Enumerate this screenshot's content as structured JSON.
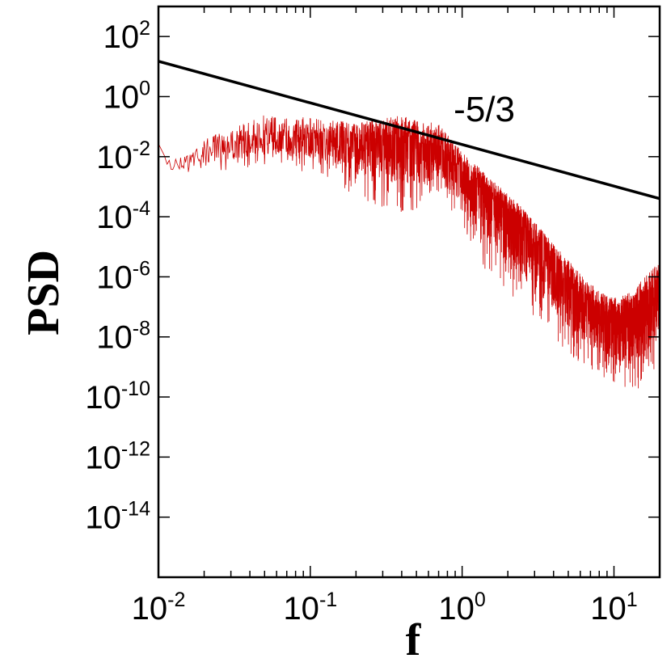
{
  "chart_data": {
    "type": "line",
    "title": "",
    "xlabel": "f",
    "ylabel": "PSD",
    "xscale": "log",
    "yscale": "log",
    "xlim": [
      0.01,
      20
    ],
    "ylim": [
      1e-16,
      1000
    ],
    "x_ticks": [
      {
        "value": 0.01,
        "base": "10",
        "exp": "-2"
      },
      {
        "value": 0.1,
        "base": "10",
        "exp": "-1"
      },
      {
        "value": 1,
        "base": "10",
        "exp": "0"
      },
      {
        "value": 10,
        "base": "10",
        "exp": "1"
      }
    ],
    "y_ticks": [
      {
        "value": 100,
        "base": "10",
        "exp": "2"
      },
      {
        "value": 1,
        "base": "10",
        "exp": "0"
      },
      {
        "value": 0.01,
        "base": "10",
        "exp": "-2"
      },
      {
        "value": 0.0001,
        "base": "10",
        "exp": "-4"
      },
      {
        "value": 1e-06,
        "base": "10",
        "exp": "-6"
      },
      {
        "value": 1e-08,
        "base": "10",
        "exp": "-8"
      },
      {
        "value": 1e-10,
        "base": "10",
        "exp": "-10"
      },
      {
        "value": 1e-12,
        "base": "10",
        "exp": "-12"
      },
      {
        "value": 1e-14,
        "base": "10",
        "exp": "-14"
      }
    ],
    "grid": false,
    "series": [
      {
        "color": "#cc0000",
        "style": "noisy spectrum",
        "envelope": {
          "x": [
            0.01,
            0.012,
            0.02,
            0.05,
            0.1,
            0.2,
            0.4,
            0.7,
            1.0,
            1.5,
            2.5,
            4,
            6,
            8,
            10,
            13,
            16,
            20
          ],
          "y_mean": [
            0.02,
            0.005,
            0.015,
            0.05,
            0.04,
            0.03,
            0.04,
            0.015,
            0.004,
            0.0006,
            4e-05,
            2e-06,
            2e-07,
            6e-08,
            4e-08,
            4e-08,
            8e-08,
            3e-07
          ],
          "y_max": [
            0.03,
            0.008,
            0.05,
            0.4,
            0.3,
            0.2,
            0.4,
            0.2,
            0.02,
            0.003,
            0.0003,
            2e-05,
            2e-06,
            5e-07,
            3e-07,
            5e-07,
            2e-06,
            6e-06
          ],
          "y_min": [
            0.01,
            0.002,
            0.003,
            0.005,
            0.003,
            0.0005,
            0.0001,
            0.0003,
            5e-05,
            1e-06,
            1e-07,
            1e-08,
            1e-09,
            5e-10,
            2e-10,
            1e-10,
            3e-10,
            1e-09
          ]
        }
      },
      {
        "color": "#000000",
        "style": "reference line",
        "x": [
          0.01,
          20
        ],
        "y": [
          15,
          0.0004
        ]
      }
    ],
    "annotations": [
      {
        "text": "-5/3",
        "x": 1.4,
        "y": 0.15
      }
    ]
  }
}
